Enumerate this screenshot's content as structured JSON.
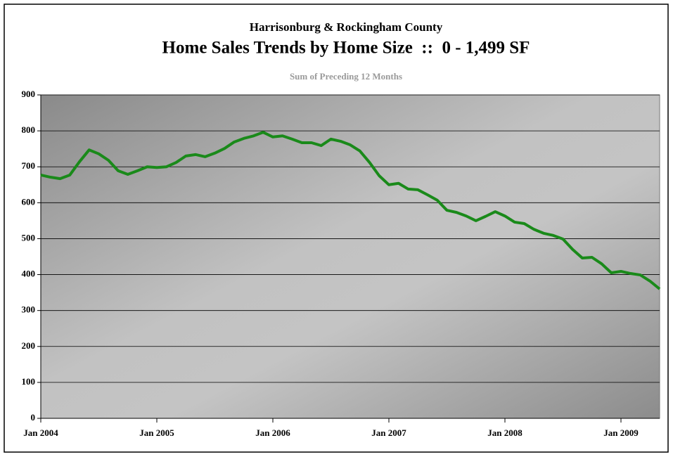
{
  "chart_data": {
    "type": "line",
    "supertitle": "Harrisonburg & Rockingham County",
    "title": "Home Sales Trends by Home Size  ::  0 - 1,499 SF",
    "subtitle": "Sum of Preceding 12 Months",
    "categories": [
      "Jan 2004",
      null,
      null,
      null,
      null,
      null,
      null,
      null,
      null,
      null,
      null,
      null,
      "Jan 2005",
      null,
      null,
      null,
      null,
      null,
      null,
      null,
      null,
      null,
      null,
      null,
      "Jan 2006",
      null,
      null,
      null,
      null,
      null,
      null,
      null,
      null,
      null,
      null,
      null,
      "Jan 2007",
      null,
      null,
      null,
      null,
      null,
      null,
      null,
      null,
      null,
      null,
      null,
      "Jan 2008",
      null,
      null,
      null,
      null,
      null,
      null,
      null,
      null,
      null,
      null,
      null,
      "Jan 2009",
      null,
      null,
      null,
      null
    ],
    "series": [
      {
        "name": "0 - 1,499 SF",
        "color": "#1a8a1a",
        "values": [
          677,
          671,
          667,
          677,
          714,
          747,
          736,
          718,
          689,
          679,
          689,
          700,
          698,
          700,
          712,
          730,
          734,
          728,
          738,
          751,
          769,
          779,
          786,
          796,
          783,
          786,
          777,
          767,
          767,
          759,
          777,
          771,
          761,
          744,
          712,
          675,
          650,
          654,
          638,
          636,
          622,
          607,
          579,
          573,
          563,
          550,
          562,
          575,
          563,
          546,
          542,
          526,
          515,
          509,
          499,
          470,
          446,
          448,
          430,
          405,
          409,
          403,
          399,
          382,
          360
        ]
      }
    ],
    "ylim": [
      0,
      900
    ],
    "yticks": [
      0,
      100,
      200,
      300,
      400,
      500,
      600,
      700,
      800,
      900
    ],
    "grid": true
  }
}
